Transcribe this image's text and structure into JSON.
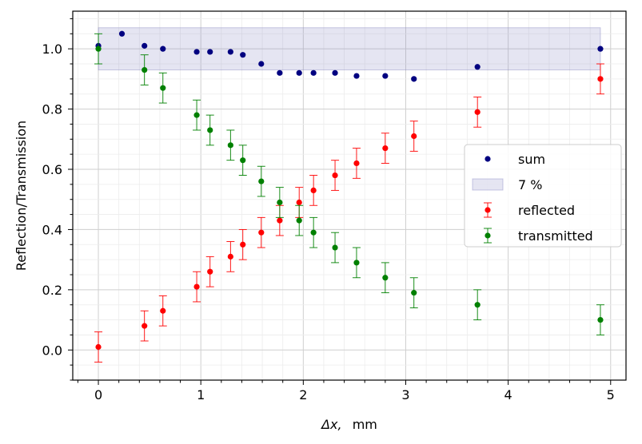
{
  "chart_data": {
    "type": "scatter",
    "xlabel_symbol": "Δx,",
    "xlabel_unit": "mm",
    "ylabel": "Reflection/Transmission",
    "xlim": [
      -0.25,
      5.15
    ],
    "ylim": [
      -0.1,
      1.125
    ],
    "x_ticks": [
      0,
      1,
      2,
      3,
      4,
      5
    ],
    "x_tick_labels": [
      "0",
      "1",
      "2",
      "3",
      "4",
      "5"
    ],
    "y_ticks": [
      0.0,
      0.2,
      0.4,
      0.6,
      0.8,
      1.0
    ],
    "y_tick_labels": [
      "0.0",
      "0.2",
      "0.4",
      "0.6",
      "0.8",
      "1.0"
    ],
    "grid": true,
    "legend_position": "center-right",
    "band": {
      "name": "7 %",
      "x": [
        0,
        4.9
      ],
      "y": [
        0.93,
        1.07
      ],
      "color": "#8a8ac4"
    },
    "series": [
      {
        "name": "sum",
        "color": "#000080",
        "errorbars": false,
        "x": [
          0,
          0.23,
          0.45,
          0.63,
          0.96,
          1.09,
          1.29,
          1.41,
          1.59,
          1.77,
          1.96,
          2.1,
          2.31,
          2.52,
          2.8,
          3.08,
          3.7,
          4.9
        ],
        "y": [
          1.01,
          1.05,
          1.01,
          1.0,
          0.99,
          0.99,
          0.99,
          0.98,
          0.95,
          0.92,
          0.92,
          0.92,
          0.92,
          0.91,
          0.91,
          0.9,
          0.94,
          1.0
        ]
      },
      {
        "name": "reflected",
        "color": "#ff0000",
        "errorbars": true,
        "yerr": 0.05,
        "x": [
          0,
          0.45,
          0.63,
          0.96,
          1.09,
          1.29,
          1.41,
          1.59,
          1.77,
          1.96,
          2.1,
          2.31,
          2.52,
          2.8,
          3.08,
          3.7,
          4.9
        ],
        "y": [
          0.01,
          0.08,
          0.13,
          0.21,
          0.26,
          0.31,
          0.35,
          0.39,
          0.43,
          0.49,
          0.53,
          0.58,
          0.62,
          0.67,
          0.71,
          0.79,
          0.9
        ]
      },
      {
        "name": "transmitted",
        "color": "#008000",
        "errorbars": true,
        "yerr": 0.05,
        "x": [
          0,
          0.45,
          0.63,
          0.96,
          1.09,
          1.29,
          1.41,
          1.59,
          1.77,
          1.96,
          2.1,
          2.31,
          2.52,
          2.8,
          3.08,
          3.7,
          4.9
        ],
        "y": [
          1.0,
          0.93,
          0.87,
          0.78,
          0.73,
          0.68,
          0.63,
          0.56,
          0.49,
          0.43,
          0.39,
          0.34,
          0.29,
          0.24,
          0.19,
          0.15,
          0.1
        ]
      }
    ],
    "legend_order": [
      "sum",
      "7 %",
      "reflected",
      "transmitted"
    ]
  }
}
